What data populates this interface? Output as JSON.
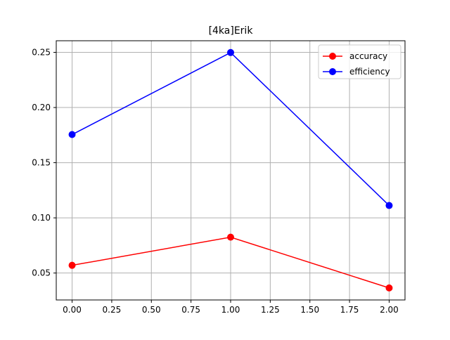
{
  "chart_data": {
    "type": "line",
    "title": "[4ka]Erik",
    "xlabel": "",
    "ylabel": "",
    "x": [
      0.0,
      1.0,
      2.0
    ],
    "series": [
      {
        "name": "accuracy",
        "values": [
          0.057,
          0.0825,
          0.0365
        ],
        "color": "#ff0000",
        "marker": "circle"
      },
      {
        "name": "efficiency",
        "values": [
          0.1755,
          0.2498,
          0.1112
        ],
        "color": "#0000ff",
        "marker": "circle"
      }
    ],
    "xlim": [
      -0.1,
      2.1
    ],
    "ylim": [
      0.0256,
      0.2605
    ],
    "xticks": [
      0.0,
      0.25,
      0.5,
      0.75,
      1.0,
      1.25,
      1.5,
      1.75,
      2.0
    ],
    "xtick_labels": [
      "0.00",
      "0.25",
      "0.50",
      "0.75",
      "1.00",
      "1.25",
      "1.50",
      "1.75",
      "2.00"
    ],
    "yticks": [
      0.05,
      0.1,
      0.15,
      0.2,
      0.25
    ],
    "ytick_labels": [
      "0.05",
      "0.10",
      "0.15",
      "0.20",
      "0.25"
    ],
    "grid": true,
    "grid_color": "#b0b0b0",
    "legend_position": "top-right"
  }
}
